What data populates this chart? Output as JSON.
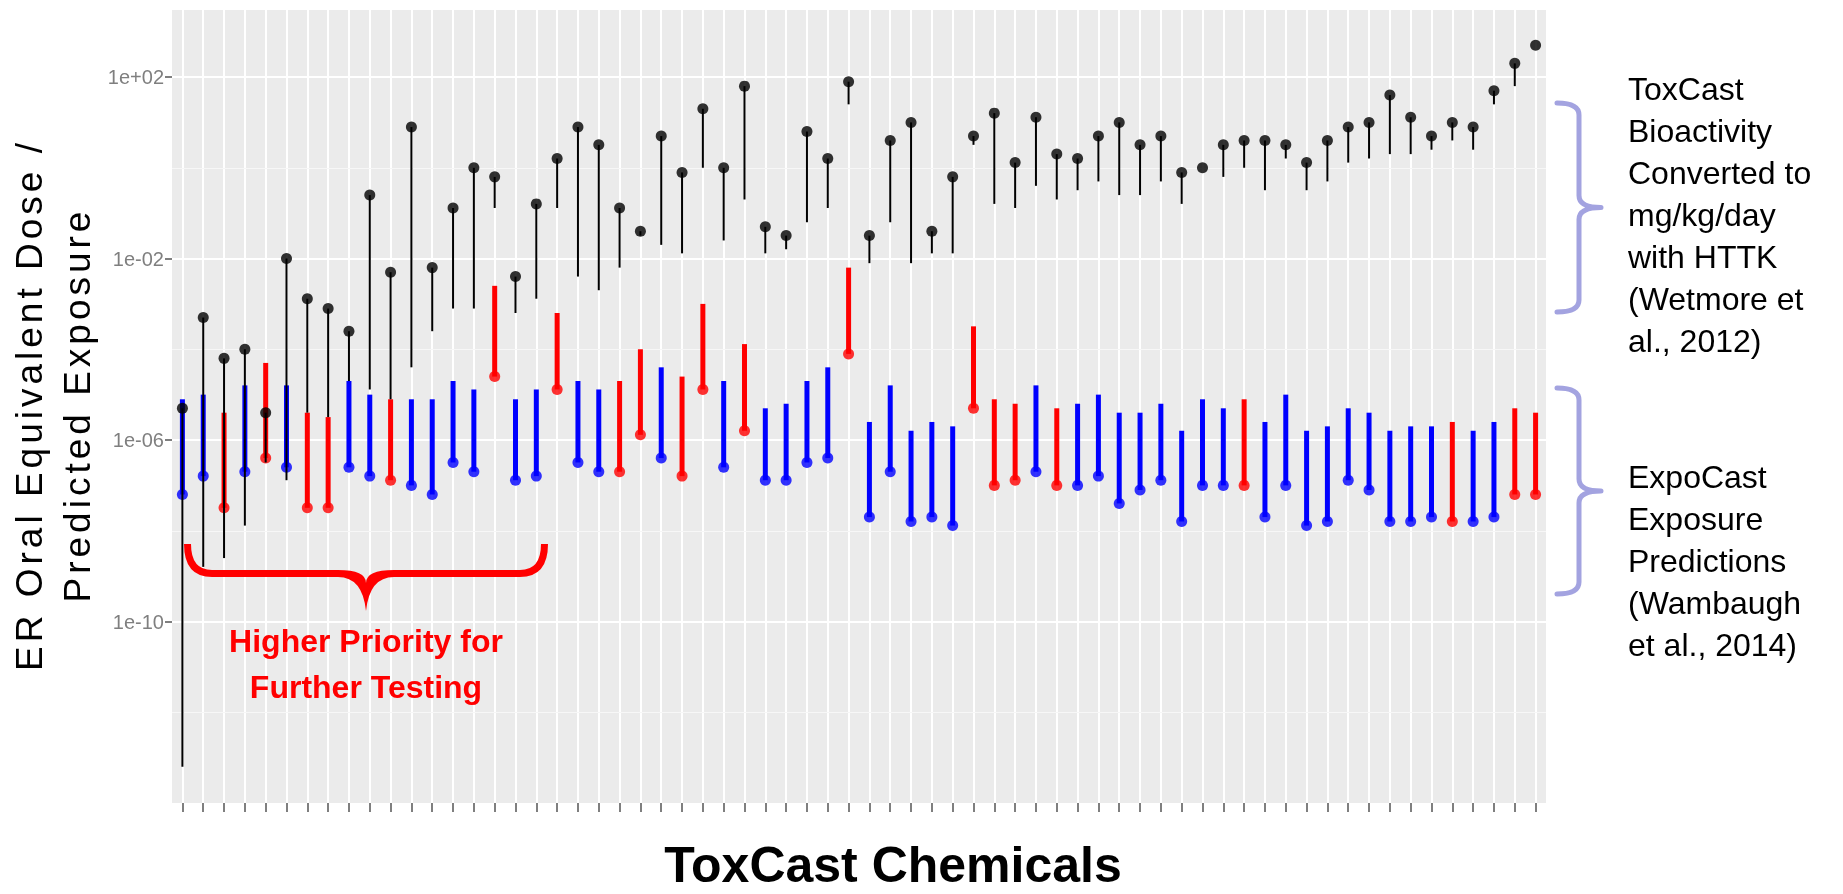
{
  "chart_data": {
    "type": "scatter",
    "xlabel": "ToxCast Chemicals",
    "ylabel": "ER Oral Equivalent Dose / Predicted Exposure",
    "annotations": [
      "Higher Priority for Further Testing",
      "ToxCast Bioactivity Converted to mg/kg/day with HTTK (Wetmore et al., 2012)",
      "ExpoCast Exposure Predictions (Wambaugh et al., 2014)"
    ],
    "categories": [
      null,
      null,
      null,
      null,
      null,
      null,
      null,
      null,
      null,
      null,
      null,
      null,
      null,
      null,
      null,
      null,
      null,
      null,
      null,
      null,
      null,
      null,
      null,
      null,
      null,
      null,
      null,
      null,
      null,
      null,
      null,
      null,
      null,
      null,
      null,
      null,
      null,
      null,
      null,
      null,
      null,
      null,
      null,
      null,
      null,
      null,
      null,
      null,
      null,
      null,
      null,
      null,
      null,
      null,
      null,
      null,
      null,
      null,
      null,
      null,
      null,
      null,
      null,
      null,
      null,
      null
    ],
    "series": [
      {
        "color": "#000000",
        "values": [
          5e-06,
          0.0005,
          6.3e-05,
          0.0001,
          4e-06,
          0.01,
          0.0013,
          0.00079,
          0.00025,
          0.25,
          0.005,
          7.9,
          0.0063,
          0.13,
          1,
          0.63,
          0.004,
          0.16,
          1.6,
          7.9,
          3.2,
          0.13,
          0.04,
          5,
          0.79,
          20,
          1,
          63,
          0.05,
          0.032,
          6.3,
          1.6,
          79,
          0.032,
          4,
          10,
          0.04,
          0.63,
          5,
          16,
          1.3,
          13,
          2,
          1.6,
          5,
          10,
          3.2,
          5,
          0.79,
          1,
          3.2,
          4,
          4,
          3.2,
          1.3,
          4,
          7.9,
          10,
          40,
          13,
          5,
          10,
          7.9,
          50,
          200,
          500
        ],
        "errors": [
          [
            6.3e-14,
            5e-06
          ],
          [
            1.6e-09,
            0.0005
          ],
          [
            2.5e-09,
            6.3e-05
          ],
          [
            1.3e-08,
            0.0001
          ],
          [
            3.2e-07,
            4e-06
          ],
          [
            1.3e-07,
            0.01
          ],
          [
            4e-06,
            0.0013
          ],
          [
            3.2e-06,
            0.00079
          ],
          [
            2e-05,
            0.00025
          ],
          [
            1.3e-05,
            0.25
          ],
          [
            7.9e-06,
            0.005
          ],
          [
            4e-05,
            7.9
          ],
          [
            0.00025,
            0.0063
          ],
          [
            0.00079,
            0.13
          ],
          [
            0.00079,
            1
          ],
          [
            0.13,
            0.63
          ],
          [
            0.00063,
            0.004
          ],
          [
            0.0013,
            0.16
          ],
          [
            0.13,
            1.6
          ],
          [
            0.004,
            7.9
          ],
          [
            0.002,
            3.2
          ],
          [
            0.0063,
            0.13
          ],
          [
            0.032,
            0.04
          ],
          [
            0.02,
            5
          ],
          [
            0.013,
            0.79
          ],
          [
            1,
            20
          ],
          [
            0.025,
            1
          ],
          [
            0.2,
            63
          ],
          [
            0.013,
            0.05
          ],
          [
            0.016,
            0.032
          ],
          [
            0.063,
            6.3
          ],
          [
            0.13,
            1.6
          ],
          [
            25,
            79
          ],
          [
            0.0079,
            0.032
          ],
          [
            0.063,
            4
          ],
          [
            0.0079,
            10
          ],
          [
            0.013,
            0.04
          ],
          [
            0.013,
            0.63
          ],
          [
            3.2,
            5
          ],
          [
            0.16,
            16
          ],
          [
            0.13,
            1.3
          ],
          [
            0.4,
            13
          ],
          [
            0.2,
            2
          ],
          [
            0.32,
            1.6
          ],
          [
            0.5,
            5
          ],
          [
            0.25,
            10
          ],
          [
            0.25,
            3.2
          ],
          [
            0.5,
            5
          ],
          [
            0.16,
            0.79
          ],
          null,
          [
            0.63,
            3.2
          ],
          [
            1,
            4
          ],
          [
            0.32,
            4
          ],
          [
            1.6,
            3.2
          ],
          [
            0.32,
            1.3
          ],
          [
            0.5,
            4
          ],
          [
            1.3,
            7.9
          ],
          [
            1.6,
            10
          ],
          [
            2,
            40
          ],
          [
            2,
            13
          ],
          [
            2.5,
            5
          ],
          [
            4,
            10
          ],
          [
            2.5,
            7.9
          ],
          [
            25,
            50
          ],
          [
            63,
            200
          ],
          null
        ]
      },
      {
        "colors": [
          "#0000ff",
          "#0000ff",
          "#ff0000",
          "#0000ff",
          "#ff0000",
          "#0000ff",
          "#ff0000",
          "#ff0000",
          "#0000ff",
          "#0000ff",
          "#ff0000",
          "#0000ff",
          "#0000ff",
          "#0000ff",
          "#0000ff",
          "#ff0000",
          "#0000ff",
          "#0000ff",
          "#ff0000",
          "#0000ff",
          "#0000ff",
          "#ff0000",
          "#ff0000",
          "#0000ff",
          "#ff0000",
          "#ff0000",
          "#0000ff",
          "#ff0000",
          "#0000ff",
          "#0000ff",
          "#0000ff",
          "#0000ff",
          "#ff0000",
          "#0000ff",
          "#0000ff",
          "#0000ff",
          "#0000ff",
          "#0000ff",
          "#ff0000",
          "#ff0000",
          "#ff0000",
          "#0000ff",
          "#ff0000",
          "#0000ff",
          "#0000ff",
          "#0000ff",
          "#0000ff",
          "#0000ff",
          "#0000ff",
          "#0000ff",
          "#0000ff",
          "#ff0000",
          "#0000ff",
          "#0000ff",
          "#0000ff",
          "#0000ff",
          "#0000ff",
          "#0000ff",
          "#0000ff",
          "#0000ff",
          "#0000ff",
          "#ff0000",
          "#0000ff",
          "#0000ff",
          "#ff0000",
          "#ff0000"
        ],
        "values": [
          6.3e-08,
          1.6e-07,
          3.2e-08,
          2e-07,
          4e-07,
          2.5e-07,
          3.2e-08,
          3.2e-08,
          2.5e-07,
          1.6e-07,
          1.3e-07,
          1e-07,
          6.3e-08,
          3.2e-07,
          2e-07,
          2.5e-05,
          1.3e-07,
          1.6e-07,
          1.3e-05,
          3.2e-07,
          2e-07,
          2e-07,
          1.3e-06,
          4e-07,
          1.6e-07,
          1.3e-05,
          2.5e-07,
          1.6e-06,
          1.3e-07,
          1.3e-07,
          3.2e-07,
          4e-07,
          7.9e-05,
          2e-08,
          2e-07,
          1.6e-08,
          2e-08,
          1.3e-08,
          5e-06,
          1e-07,
          1.3e-07,
          2e-07,
          1e-07,
          1e-07,
          1.6e-07,
          4e-08,
          7.9e-08,
          1.3e-07,
          1.6e-08,
          1e-07,
          1e-07,
          1e-07,
          2e-08,
          1e-07,
          1.3e-08,
          1.6e-08,
          1.3e-07,
          7.9e-08,
          1.6e-08,
          1.6e-08,
          2e-08,
          1.6e-08,
          1.6e-08,
          2e-08,
          6.3e-08,
          6.3e-08
        ],
        "errors": [
          [
            6.3e-08,
            7.9e-06
          ],
          [
            1.6e-07,
            1e-05
          ],
          [
            3.2e-08,
            4e-06
          ],
          [
            2e-07,
            1.6e-05
          ],
          [
            4e-07,
            5e-05
          ],
          [
            2.5e-07,
            1.6e-05
          ],
          [
            3.2e-08,
            4e-06
          ],
          [
            3.2e-08,
            3.2e-06
          ],
          [
            2.5e-07,
            2e-05
          ],
          [
            1.6e-07,
            1e-05
          ],
          [
            1.3e-07,
            7.9e-06
          ],
          [
            1e-07,
            7.9e-06
          ],
          [
            6.3e-08,
            7.9e-06
          ],
          [
            3.2e-07,
            2e-05
          ],
          [
            2e-07,
            1.3e-05
          ],
          [
            2.5e-05,
            0.0025
          ],
          [
            1.3e-07,
            7.9e-06
          ],
          [
            1.6e-07,
            1.3e-05
          ],
          [
            1.3e-05,
            0.00063
          ],
          [
            3.2e-07,
            2e-05
          ],
          [
            2e-07,
            1.3e-05
          ],
          [
            2e-07,
            2e-05
          ],
          [
            1.3e-06,
            0.0001
          ],
          [
            4e-07,
            4e-05
          ],
          [
            1.6e-07,
            2.5e-05
          ],
          [
            1.3e-05,
            0.001
          ],
          [
            2.5e-07,
            2e-05
          ],
          [
            1.6e-06,
            0.00013
          ],
          [
            1.3e-07,
            5e-06
          ],
          [
            1.3e-07,
            6.3e-06
          ],
          [
            3.2e-07,
            2e-05
          ],
          [
            4e-07,
            4e-05
          ],
          [
            7.9e-05,
            0.0063
          ],
          [
            2e-08,
            2.5e-06
          ],
          [
            2e-07,
            1.6e-05
          ],
          [
            1.6e-08,
            1.6e-06
          ],
          [
            2e-08,
            2.5e-06
          ],
          [
            1.3e-08,
            2e-06
          ],
          [
            5e-06,
            0.00032
          ],
          [
            1e-07,
            7.9e-06
          ],
          [
            1.3e-07,
            6.3e-06
          ],
          [
            2e-07,
            1.6e-05
          ],
          [
            1e-07,
            5e-06
          ],
          [
            1e-07,
            6.3e-06
          ],
          [
            1.6e-07,
            1e-05
          ],
          [
            4e-08,
            4e-06
          ],
          [
            7.9e-08,
            4e-06
          ],
          [
            1.3e-07,
            6.3e-06
          ],
          [
            1.6e-08,
            1.6e-06
          ],
          [
            1e-07,
            7.9e-06
          ],
          [
            1e-07,
            5e-06
          ],
          [
            1e-07,
            7.9e-06
          ],
          [
            2e-08,
            2.5e-06
          ],
          [
            1e-07,
            1e-05
          ],
          [
            1.3e-08,
            1.6e-06
          ],
          [
            1.6e-08,
            2e-06
          ],
          [
            1.3e-07,
            5e-06
          ],
          [
            7.9e-08,
            4e-06
          ],
          [
            1.6e-08,
            1.6e-06
          ],
          [
            1.6e-08,
            2e-06
          ],
          [
            2e-08,
            2e-06
          ],
          [
            1.6e-08,
            2.5e-06
          ],
          [
            1.6e-08,
            1.6e-06
          ],
          [
            2e-08,
            2.5e-06
          ],
          [
            6.3e-08,
            5e-06
          ],
          [
            6.3e-08,
            4e-06
          ]
        ]
      }
    ],
    "ylim": [
      1e-14,
      3000
    ],
    "yticks": [
      {
        "value": 1e-12,
        "label": null
      },
      {
        "value": 1e-10,
        "label": "1e-10"
      },
      {
        "value": 1e-08,
        "label": null
      },
      {
        "value": 1e-06,
        "label": "1e-06"
      },
      {
        "value": 0.0001,
        "label": null
      },
      {
        "value": 0.01,
        "label": "1e-02"
      },
      {
        "value": 1,
        "label": null
      },
      {
        "value": 100,
        "label": "1e+02"
      }
    ],
    "log": "y",
    "grid": true,
    "marker": "circle",
    "tick_labels": "y"
  }
}
